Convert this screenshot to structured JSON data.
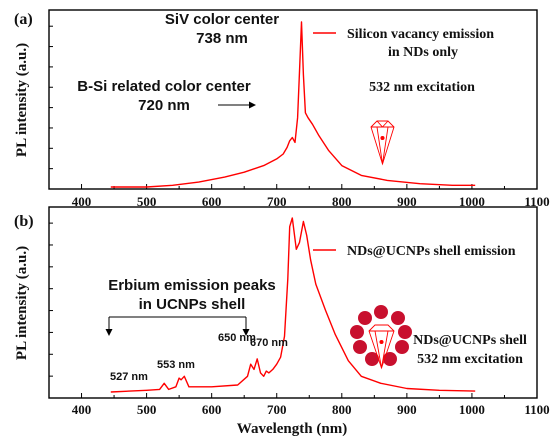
{
  "chart_data": [
    {
      "panel_label": "(a)",
      "type": "line",
      "xlabel": "",
      "ylabel": "PL intensity (a.u.)",
      "xlim": [
        350,
        1100
      ],
      "xticks": [
        "400",
        "500",
        "600",
        "700",
        "800",
        "900",
        "1000",
        "1100"
      ],
      "color": "#ff0000",
      "series": [
        {
          "name": "Silicon vacancy emission in NDs only",
          "x": [
            445,
            500,
            540,
            580,
            620,
            650,
            680,
            700,
            710,
            716,
            720,
            724,
            728,
            732,
            735,
            738,
            741,
            744,
            748,
            755,
            765,
            780,
            800,
            830,
            870,
            920,
            970,
            1005
          ],
          "y": [
            0.0,
            0.0,
            0.01,
            0.03,
            0.06,
            0.09,
            0.13,
            0.17,
            0.2,
            0.24,
            0.28,
            0.3,
            0.27,
            0.42,
            0.7,
            1.0,
            0.68,
            0.45,
            0.42,
            0.38,
            0.31,
            0.22,
            0.13,
            0.07,
            0.04,
            0.02,
            0.01,
            0.01
          ]
        }
      ],
      "legend": [
        "Silicon vacancy emission",
        "in NDs only"
      ],
      "annotations": {
        "siv_title": "SiV color center",
        "siv_wavelength": "738 nm",
        "bsi_title": "B-Si related color center",
        "bsi_wavelength": "720 nm",
        "excitation": "532 nm excitation"
      }
    },
    {
      "panel_label": "(b)",
      "type": "line",
      "xlabel": "Wavelength (nm)",
      "ylabel": "PL intensity (a.u.)",
      "xlim": [
        350,
        1100
      ],
      "xticks": [
        "400",
        "500",
        "600",
        "700",
        "800",
        "900",
        "1000",
        "1100"
      ],
      "color": "#ff0000",
      "series": [
        {
          "name": "NDs@UCNPs shell emission",
          "x": [
            445,
            500,
            520,
            527,
            534,
            545,
            550,
            553,
            558,
            565,
            600,
            640,
            655,
            660,
            665,
            670,
            675,
            680,
            684,
            688,
            694,
            700,
            706,
            712,
            717,
            720,
            724,
            730,
            735,
            741,
            746,
            752,
            760,
            775,
            790,
            810,
            830,
            860,
            900,
            950,
            1005
          ],
          "y": [
            0.0,
            0.01,
            0.015,
            0.05,
            0.015,
            0.03,
            0.08,
            0.07,
            0.09,
            0.03,
            0.03,
            0.04,
            0.09,
            0.16,
            0.13,
            0.19,
            0.11,
            0.09,
            0.12,
            0.11,
            0.13,
            0.16,
            0.2,
            0.32,
            0.65,
            0.95,
            1.0,
            0.82,
            0.86,
            0.98,
            0.9,
            0.76,
            0.62,
            0.47,
            0.33,
            0.18,
            0.09,
            0.05,
            0.02,
            0.01,
            0.005
          ]
        }
      ],
      "legend": [
        "NDs@UCNPs shell emission"
      ],
      "annotations": {
        "erbium_line1": "Erbium emission peaks",
        "erbium_line2": "in UCNPs shell",
        "peak_527": "527 nm",
        "peak_553": "553 nm",
        "peak_650": "650 nm",
        "peak_670": "670 nm",
        "shell_label": "NDs@UCNPs shell",
        "excitation": "532 nm excitation"
      }
    }
  ]
}
